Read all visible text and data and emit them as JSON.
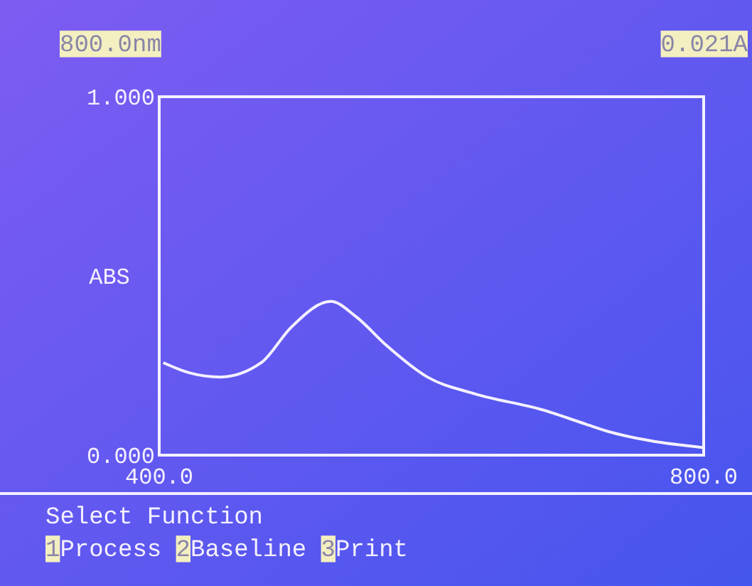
{
  "chart_data": {
    "type": "line",
    "ylabel": "ABS",
    "xlim": [
      400,
      800
    ],
    "xticks": [
      {
        "value": 400,
        "label": "400.0"
      },
      {
        "value": 800,
        "label": "800.0"
      }
    ],
    "ylim": [
      0,
      1
    ],
    "yticks": [
      {
        "value": 0,
        "label": "0.000"
      },
      {
        "value": 1,
        "label": "1.000"
      }
    ],
    "marker": "none",
    "line_style": "solid",
    "series": [
      {
        "color": "#f4f0ff",
        "x": [
          403,
          422,
          445,
          475,
          497,
          526,
          545,
          567,
          597,
          632,
          681,
          713,
          729,
          761,
          800
        ],
        "values": [
          0.258,
          0.23,
          0.218,
          0.258,
          0.357,
          0.429,
          0.385,
          0.306,
          0.218,
          0.171,
          0.127,
          0.087,
          0.067,
          0.04,
          0.021
        ]
      }
    ],
    "annotations": [
      "800.0nm",
      "0.021A",
      "Select Function",
      "1Process 2Baseline 3Print"
    ]
  }
}
